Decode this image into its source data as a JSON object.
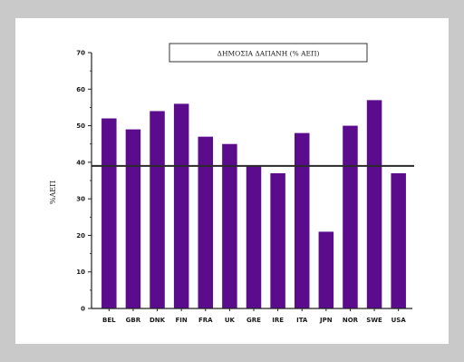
{
  "chart_data": {
    "type": "bar",
    "title": "ΔΗΜΟΣΙΑ ΔΑΠΑΝΗ (% ΑΕΠ)",
    "xlabel": "",
    "ylabel": "%ΑΕΠ",
    "ylim": [
      0,
      70
    ],
    "yticks": [
      "0",
      "10",
      "20",
      "30",
      "40",
      "50",
      "60",
      "70"
    ],
    "categories": [
      "BEL",
      "GBR",
      "DNK",
      "FIN",
      "FRA",
      "UK",
      "GRE",
      "IRE",
      "ITA",
      "JPN",
      "NOR",
      "SWE",
      "USA"
    ],
    "values": [
      52,
      49,
      54,
      56,
      47,
      45,
      39,
      37,
      48,
      21,
      50,
      57,
      37
    ],
    "reference_line": 39,
    "bar_color": "#5a0c8c",
    "grid": false,
    "legend": "none"
  }
}
